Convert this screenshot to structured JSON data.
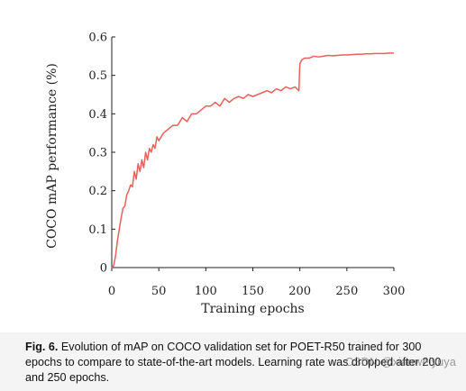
{
  "chart_data": {
    "type": "line",
    "xlabel": "Training epochs",
    "ylabel": "COCO mAP performance (%)",
    "xlim": [
      0,
      300
    ],
    "ylim": [
      0,
      0.6
    ],
    "x_ticks": [
      0,
      50,
      100,
      150,
      200,
      250,
      300
    ],
    "x_tick_labels": [
      "0",
      "50",
      "100",
      "150",
      "200",
      "250",
      "300"
    ],
    "y_ticks": [
      0,
      0.1,
      0.2,
      0.3,
      0.4,
      0.5,
      0.6
    ],
    "y_tick_labels": [
      "0",
      "0.1",
      "0.2",
      "0.3",
      "0.4",
      "0.5",
      "0.6"
    ],
    "grid": false,
    "line_color": "#e8605a",
    "series": [
      {
        "x": [
          0,
          2,
          4,
          6,
          8,
          10,
          12,
          14,
          16,
          18,
          20,
          22,
          24,
          26,
          28,
          30,
          32,
          34,
          36,
          38,
          40,
          42,
          44,
          46,
          48,
          50,
          55,
          60,
          65,
          70,
          75,
          80,
          85,
          90,
          95,
          100,
          105,
          110,
          115,
          120,
          125,
          130,
          135,
          140,
          145,
          150,
          155,
          160,
          165,
          170,
          175,
          180,
          185,
          190,
          195,
          199,
          200,
          202,
          205,
          210,
          215,
          220,
          225,
          230,
          235,
          240,
          245,
          250,
          255,
          260,
          265,
          270,
          275,
          280,
          285,
          290,
          295,
          300
        ],
        "y": [
          0.0,
          0.005,
          0.03,
          0.07,
          0.1,
          0.13,
          0.155,
          0.16,
          0.19,
          0.2,
          0.215,
          0.21,
          0.25,
          0.23,
          0.27,
          0.25,
          0.28,
          0.26,
          0.3,
          0.28,
          0.31,
          0.3,
          0.32,
          0.31,
          0.34,
          0.33,
          0.35,
          0.36,
          0.37,
          0.37,
          0.39,
          0.38,
          0.4,
          0.4,
          0.41,
          0.42,
          0.42,
          0.43,
          0.42,
          0.44,
          0.43,
          0.44,
          0.445,
          0.44,
          0.45,
          0.445,
          0.45,
          0.455,
          0.46,
          0.455,
          0.465,
          0.46,
          0.47,
          0.465,
          0.47,
          0.46,
          0.53,
          0.54,
          0.545,
          0.545,
          0.55,
          0.548,
          0.55,
          0.552,
          0.551,
          0.552,
          0.553,
          0.553,
          0.554,
          0.555,
          0.555,
          0.556,
          0.556,
          0.557,
          0.557,
          0.557,
          0.558,
          0.558
        ]
      }
    ]
  },
  "caption": {
    "label": "Fig. 6.",
    "text": "Evolution of mAP on COCO validation set for POET-R50 trained for 300 epochs to compare to state-of-the-art models. Learning rate was dropped after 200 and 250 epochs."
  },
  "watermark": "CSDN @xiaoweiyuya"
}
